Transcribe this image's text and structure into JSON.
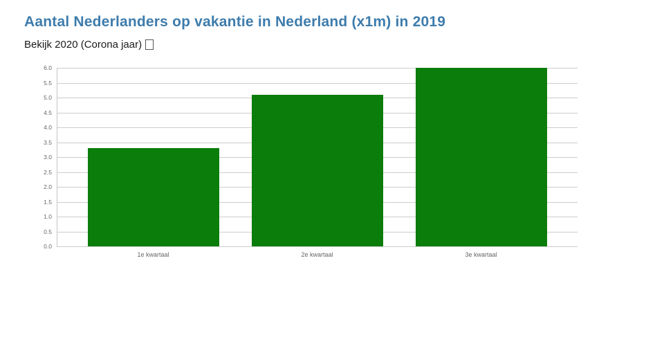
{
  "header": {
    "title": "Aantal Nederlanders op vakantie in Nederland (x1m) in 2019",
    "title_color": "#3e7cac",
    "link_label": "Bekijk 2020 (Corona jaar)"
  },
  "chart_data": {
    "type": "bar",
    "title": "Aantal Nederlanders op vakantie in Nederland (x1m) in 2019",
    "categories": [
      "1e kwartaal",
      "2e kwartaal",
      "3e kwartaal"
    ],
    "values": [
      3.3,
      5.1,
      6.0
    ],
    "xlabel": "",
    "ylabel": "",
    "ylim": [
      0,
      6
    ],
    "ytick_step": 0.5,
    "ytick_labels": [
      "0.0",
      "0.5",
      "1.0",
      "1.5",
      "2.0",
      "2.5",
      "3.0",
      "3.5",
      "4.0",
      "4.5",
      "5.0",
      "5.5",
      "6.0"
    ],
    "grid": true,
    "legend": false,
    "bar_color": "#0b7d0b",
    "grid_color": "#cccccc",
    "axis_color": "#c4c4c4",
    "tick_text_color": "#666666"
  }
}
